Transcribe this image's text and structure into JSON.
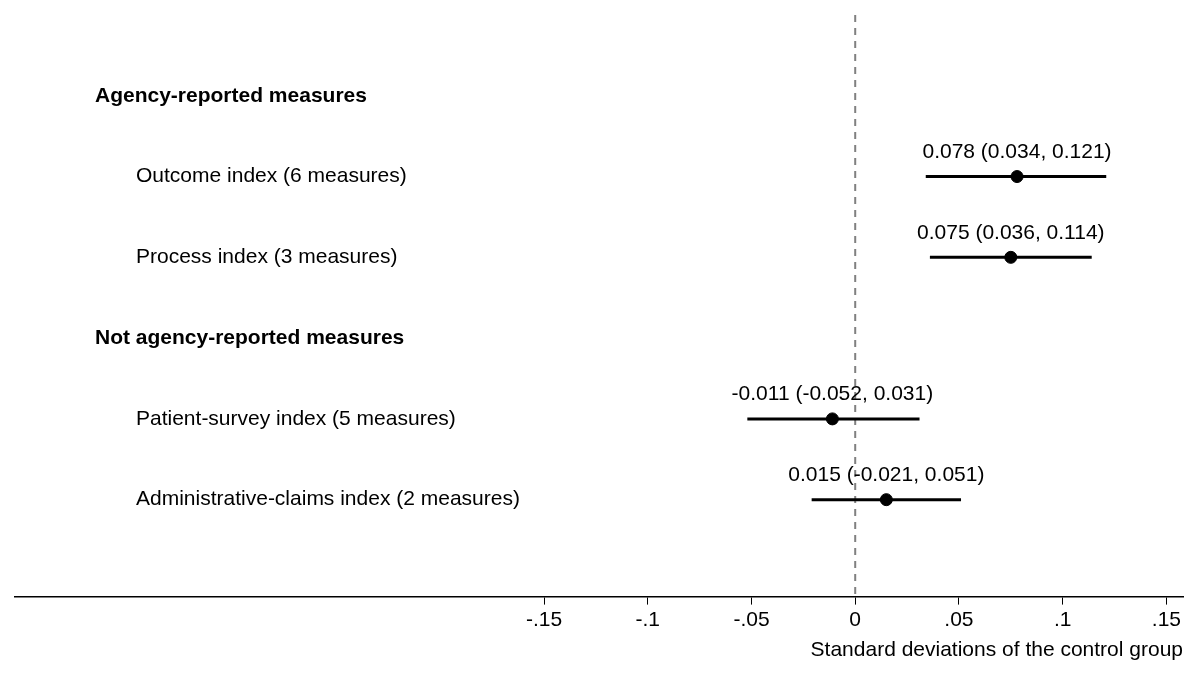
{
  "chart_data": {
    "type": "scatter",
    "orientation": "horizontal",
    "categories": [
      "Agency-reported measures",
      "Outcome index (6 measures)",
      "Process index (3 measures)",
      "Not agency-reported measures",
      "Patient-survey index (5 measures)",
      "Administrative-claims index (2 measures)"
    ],
    "values": [
      null,
      0.078,
      0.075,
      null,
      -0.011,
      0.015
    ],
    "errors": [
      null,
      [
        0.034,
        0.121
      ],
      [
        0.036,
        0.114
      ],
      null,
      [
        -0.052,
        0.031
      ],
      [
        -0.021,
        0.051
      ]
    ],
    "value_labels": [
      null,
      "0.078 (0.034, 0.121)",
      "0.075 (0.036, 0.114)",
      null,
      "-0.011 (-0.052, 0.031)",
      "0.015 (-0.021, 0.051)"
    ],
    "color": "#000000",
    "xlabel": "Standard deviations of the control group",
    "xlim": [
      -0.405,
      0.158
    ],
    "xticks": [
      {
        "value": -0.15,
        "label": "-.15"
      },
      {
        "value": -0.1,
        "label": "-.1"
      },
      {
        "value": -0.05,
        "label": "-.05"
      },
      0,
      {
        "value": 0.05,
        "label": ".05"
      },
      {
        "value": 0.1,
        "label": ".1"
      },
      {
        "value": 0.15,
        "label": ".15"
      }
    ],
    "ref_lines": [
      {
        "axis": "x",
        "value": 0,
        "color": "#808080",
        "line_style": "dashed"
      }
    ],
    "marker": "circle",
    "grid": false,
    "legend": false,
    "tick_labels": "x"
  }
}
